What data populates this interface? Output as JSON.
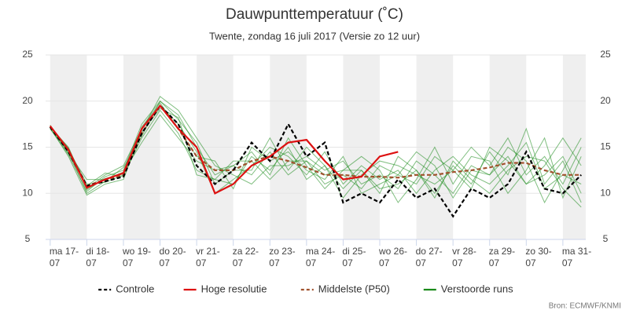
{
  "chart_data": {
    "type": "line",
    "title": "Dauwpunttemperatuur (˚C)",
    "subtitle": "Twente, zondag 16 juli 2017 (Versie zo 12 uur)",
    "source": "Bron: ECMWF/KNMI",
    "x": [
      0,
      12,
      24,
      36,
      48,
      60,
      72,
      84,
      96,
      108,
      120,
      132,
      144,
      156,
      168,
      180,
      192,
      204,
      216,
      228,
      240,
      252,
      264,
      276,
      288,
      300,
      312,
      324,
      336,
      348
    ],
    "xlim": [
      -3,
      351
    ],
    "xticks": [
      {
        "value": 0,
        "label": "ma 17-07"
      },
      {
        "value": 24,
        "label": "di 18-07"
      },
      {
        "value": 48,
        "label": "wo 19-07"
      },
      {
        "value": 72,
        "label": "do 20-07"
      },
      {
        "value": 96,
        "label": "vr 21-07"
      },
      {
        "value": 120,
        "label": "za 22-07"
      },
      {
        "value": 144,
        "label": "zo 23-07"
      },
      {
        "value": 168,
        "label": "ma 24-07"
      },
      {
        "value": 192,
        "label": "di 25-07"
      },
      {
        "value": 216,
        "label": "wo 26-07"
      },
      {
        "value": 240,
        "label": "do 27-07"
      },
      {
        "value": 264,
        "label": "vr 28-07"
      },
      {
        "value": 288,
        "label": "za 29-07"
      },
      {
        "value": 312,
        "label": "zo 30-07"
      },
      {
        "value": 336,
        "label": "ma 31-07"
      }
    ],
    "ylim": [
      5,
      25
    ],
    "yticks": [
      5,
      10,
      15,
      20,
      25
    ],
    "grid": true,
    "series": [
      {
        "name": "Controle",
        "color": "#000000",
        "dashed": true,
        "values": [
          17.2,
          14.5,
          10.8,
          11.3,
          11.8,
          16.5,
          19.5,
          17.5,
          13,
          11,
          12.5,
          15.5,
          13.5,
          17.5,
          14,
          15.5,
          9,
          10,
          9,
          11.5,
          9.5,
          10.5,
          7.5,
          10.5,
          9.5,
          11,
          14.5,
          10.5,
          10,
          12
        ]
      },
      {
        "name": "Hoge resolutie",
        "color": "#dd1111",
        "dashed": false,
        "values": [
          17.3,
          14.7,
          10.6,
          11.5,
          12.2,
          17,
          19.5,
          17,
          15,
          10,
          11,
          13,
          14,
          15.5,
          15.8,
          13.5,
          11.5,
          11.8,
          14,
          14.5,
          null,
          null,
          null,
          null,
          null,
          null,
          null,
          null,
          null,
          null
        ]
      },
      {
        "name": "Middelste (P50)",
        "color": "#a0522d",
        "dashed": true,
        "values": [
          17.2,
          14.6,
          10.8,
          11.5,
          12,
          16.5,
          19.5,
          17,
          14,
          12.5,
          12.5,
          13.5,
          14,
          13.5,
          12.8,
          12,
          12,
          11.8,
          11.8,
          11.7,
          12,
          12,
          12.3,
          12.5,
          12.8,
          13.3,
          13.3,
          12.5,
          12,
          12
        ]
      },
      {
        "name": "Verstoorde runs",
        "color": "#1a8a1a",
        "dashed": false,
        "values": [
          [
            17,
            14.2,
            10.2,
            11.8,
            12.5,
            17.5,
            20,
            18.5,
            15,
            12,
            13,
            12,
            14.5,
            12,
            13.5,
            11,
            12,
            10.5,
            13,
            12,
            11,
            14,
            12.5,
            15,
            13,
            16,
            12,
            14,
            11,
            15
          ],
          [
            17.3,
            14.8,
            11,
            11.2,
            12,
            16,
            19,
            16.5,
            12.5,
            11.5,
            11,
            14,
            12.5,
            15,
            11.5,
            13,
            10.5,
            12.5,
            10,
            14,
            12.5,
            10,
            13,
            11,
            14.5,
            12,
            17,
            11,
            13.5,
            9
          ],
          [
            17.1,
            14,
            9.8,
            11,
            11.5,
            16.8,
            20.5,
            19,
            16,
            13,
            12,
            11,
            13,
            13,
            14,
            12.5,
            13.5,
            11,
            12,
            10.5,
            13.5,
            12,
            10,
            13,
            12,
            14,
            11,
            13,
            16,
            13
          ],
          [
            17.2,
            15,
            10.5,
            12,
            13,
            17,
            19.5,
            17.5,
            14.5,
            10,
            11.5,
            13,
            15,
            14,
            12,
            14.5,
            11,
            13,
            11.5,
            12.5,
            10,
            12.5,
            14,
            12,
            11,
            13,
            15.5,
            10.5,
            12,
            11
          ],
          [
            17.4,
            14.4,
            11.5,
            11.5,
            12.3,
            15.5,
            18.5,
            16,
            13.5,
            12.5,
            13,
            14.5,
            12,
            16,
            13,
            10.5,
            12.5,
            14,
            12.5,
            9,
            11.5,
            15,
            11,
            14,
            13.5,
            10,
            12.5,
            16,
            9.5,
            14
          ],
          [
            17,
            14.6,
            10,
            11.3,
            12.8,
            16.2,
            20,
            18,
            15.5,
            11,
            12.5,
            12.5,
            16,
            12.5,
            15,
            13,
            9.5,
            12,
            13.5,
            13,
            12,
            11,
            12.5,
            10.5,
            15,
            13.5,
            11,
            12,
            14,
            10
          ],
          [
            17.3,
            14.3,
            10.8,
            12.2,
            11.8,
            17.2,
            19.8,
            17,
            14,
            13.5,
            10.5,
            15,
            13.5,
            14.5,
            12.5,
            11.5,
            14,
            10,
            11,
            12,
            14.5,
            13,
            9.5,
            12.5,
            12,
            15,
            13.5,
            9,
            12.5,
            16
          ],
          [
            17.2,
            14.9,
            10.4,
            11.6,
            12.1,
            16.6,
            19.2,
            18.2,
            12,
            11.5,
            13.5,
            13.5,
            11.5,
            13.5,
            13.5,
            12,
            12.5,
            12.5,
            10.5,
            11,
            12.5,
            9.5,
            13.5,
            11.5,
            10,
            12.5,
            14,
            13.5,
            10.5,
            8.5
          ]
        ]
      }
    ]
  }
}
